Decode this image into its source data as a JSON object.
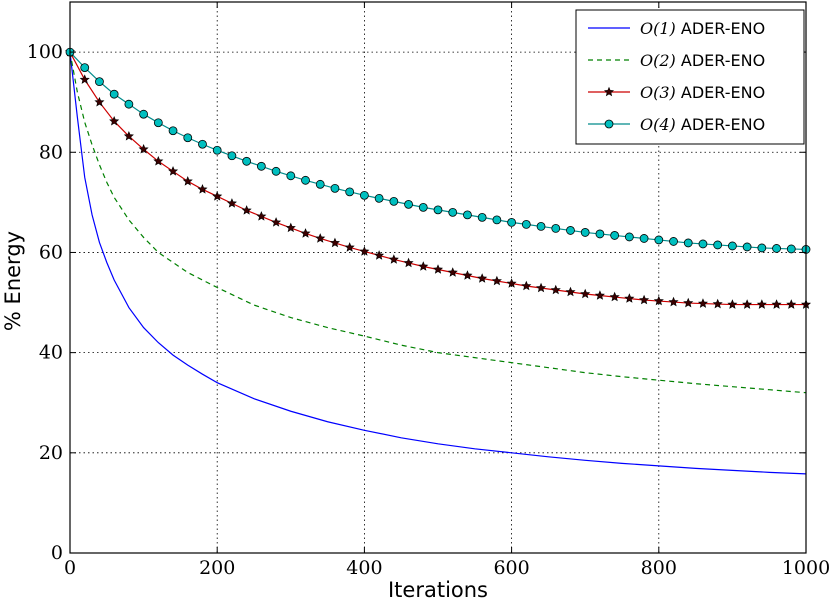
{
  "chart_data": {
    "type": "line",
    "title": "",
    "xlabel": "Iterations",
    "ylabel": "% Energy",
    "xlim": [
      0,
      1000
    ],
    "ylim": [
      0,
      110
    ],
    "xticks": [
      0,
      200,
      400,
      600,
      800,
      1000
    ],
    "yticks": [
      0,
      20,
      40,
      60,
      80,
      100
    ],
    "grid": true,
    "legend_position": "top-right",
    "series": [
      {
        "name": "O(1) ADER-ENO",
        "name_parts": {
          "math": "O(1)",
          "text": "ADER-ENO"
        },
        "color": "#0000ff",
        "line_style": "solid",
        "marker": "none",
        "x": [
          0,
          10,
          20,
          30,
          40,
          50,
          60,
          80,
          100,
          120,
          140,
          160,
          180,
          200,
          250,
          300,
          350,
          400,
          450,
          500,
          550,
          600,
          650,
          700,
          750,
          800,
          850,
          900,
          950,
          1000
        ],
        "y": [
          100,
          87,
          75,
          67.5,
          62,
          58,
          54.5,
          49,
          45,
          42,
          39.5,
          37.5,
          35.7,
          34,
          30.8,
          28.3,
          26.2,
          24.5,
          23,
          21.8,
          20.8,
          20,
          19.2,
          18.5,
          17.9,
          17.4,
          16.9,
          16.5,
          16.1,
          15.8
        ]
      },
      {
        "name": "O(2) ADER-ENO",
        "name_parts": {
          "math": "O(2)",
          "text": "ADER-ENO"
        },
        "color": "#008000",
        "line_style": "dashed",
        "marker": "none",
        "x": [
          0,
          10,
          20,
          30,
          40,
          50,
          60,
          80,
          100,
          120,
          140,
          160,
          180,
          200,
          250,
          300,
          350,
          400,
          450,
          500,
          550,
          600,
          650,
          700,
          750,
          800,
          850,
          900,
          950,
          1000
        ],
        "y": [
          100,
          92,
          86,
          81.5,
          77.5,
          74,
          71,
          66.5,
          63,
          60,
          58,
          56,
          54.5,
          53,
          49.5,
          47,
          45,
          43.3,
          41.5,
          40,
          39,
          38,
          37,
          36,
          35.2,
          34.5,
          33.8,
          33.2,
          32.6,
          32
        ]
      },
      {
        "name": "O(3) ADER-ENO",
        "name_parts": {
          "math": "O(3)",
          "text": "ADER-ENO"
        },
        "color": "#cc0000",
        "line_style": "solid",
        "marker": "star",
        "marker_color": "#3b0000",
        "x": [
          0,
          20,
          40,
          60,
          80,
          100,
          120,
          140,
          160,
          180,
          200,
          220,
          240,
          260,
          280,
          300,
          320,
          340,
          360,
          380,
          400,
          420,
          440,
          460,
          480,
          500,
          520,
          540,
          560,
          580,
          600,
          620,
          640,
          660,
          680,
          700,
          720,
          740,
          760,
          780,
          800,
          820,
          840,
          860,
          880,
          900,
          920,
          940,
          960,
          980,
          1000
        ],
        "y": [
          100,
          94.5,
          90,
          86.2,
          83.2,
          80.6,
          78.2,
          76.2,
          74.2,
          72.6,
          71.2,
          69.8,
          68.4,
          67.2,
          66,
          64.9,
          63.8,
          62.8,
          61.9,
          61,
          60.2,
          59.4,
          58.6,
          57.9,
          57.2,
          56.6,
          56,
          55.4,
          54.8,
          54.3,
          53.8,
          53.3,
          52.9,
          52.5,
          52.1,
          51.7,
          51.4,
          51.1,
          50.8,
          50.5,
          50.3,
          50.1,
          49.9,
          49.8,
          49.7,
          49.6,
          49.6,
          49.6,
          49.6,
          49.6,
          49.6
        ]
      },
      {
        "name": "O(4) ADER-ENO",
        "name_parts": {
          "math": "O(4)",
          "text": "ADER-ENO"
        },
        "color": "#008b8b",
        "line_style": "solid",
        "marker": "circle",
        "marker_color": "#00bfbf",
        "x": [
          0,
          20,
          40,
          60,
          80,
          100,
          120,
          140,
          160,
          180,
          200,
          220,
          240,
          260,
          280,
          300,
          320,
          340,
          360,
          380,
          400,
          420,
          440,
          460,
          480,
          500,
          520,
          540,
          560,
          580,
          600,
          620,
          640,
          660,
          680,
          700,
          720,
          740,
          760,
          780,
          800,
          820,
          840,
          860,
          880,
          900,
          920,
          940,
          960,
          980,
          1000
        ],
        "y": [
          100,
          96.9,
          94.1,
          91.6,
          89.6,
          87.6,
          85.9,
          84.3,
          82.9,
          81.6,
          80.4,
          79.3,
          78.2,
          77.2,
          76.2,
          75.3,
          74.4,
          73.6,
          72.8,
          72.1,
          71.4,
          70.8,
          70.2,
          69.6,
          69,
          68.5,
          68,
          67.5,
          67,
          66.5,
          66,
          65.6,
          65.2,
          64.8,
          64.4,
          64,
          63.7,
          63.4,
          63.1,
          62.8,
          62.5,
          62.2,
          61.9,
          61.7,
          61.5,
          61.3,
          61.1,
          60.9,
          60.8,
          60.7,
          60.6
        ]
      }
    ]
  }
}
